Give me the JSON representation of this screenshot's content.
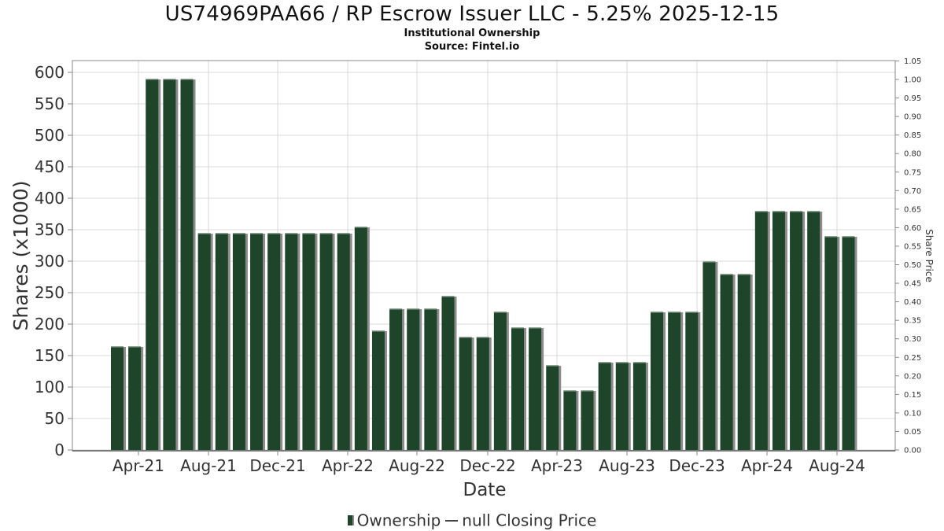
{
  "header": {
    "title": "US74969PAA66 / RP Escrow Issuer LLC - 5.25% 2025-12-15",
    "subtitle1": "Institutional Ownership",
    "subtitle2": "Source: Fintel.io"
  },
  "legend": {
    "ownership": "Ownership",
    "price": "null Closing Price"
  },
  "colors": {
    "bar": "#1e4429",
    "bar_shadow": "#8c8c8c",
    "grid": "#d9d9d9",
    "axis": "#888888"
  },
  "chart_data": {
    "type": "bar",
    "title": "US74969PAA66 / RP Escrow Issuer LLC - 5.25% 2025-12-15",
    "xlabel": "Date",
    "ylabel": "Shares (x1000)",
    "y2label": "Share Price",
    "ylim": [
      0,
      615
    ],
    "y2lim": [
      0,
      1.05
    ],
    "yticks": [
      "0",
      "50",
      "100",
      "150",
      "200",
      "250",
      "300",
      "350",
      "400",
      "450",
      "500",
      "550",
      "600"
    ],
    "y2ticks": [
      "0.00",
      "0.05",
      "0.10",
      "0.15",
      "0.20",
      "0.25",
      "0.30",
      "0.35",
      "0.40",
      "0.45",
      "0.50",
      "0.55",
      "0.60",
      "0.65",
      "0.70",
      "0.75",
      "0.80",
      "0.85",
      "0.90",
      "0.95",
      "1.00",
      "1.05"
    ],
    "xticks": [
      "Apr-21",
      "Aug-21",
      "Dec-21",
      "Apr-22",
      "Aug-22",
      "Dec-22",
      "Apr-23",
      "Aug-23",
      "Dec-23",
      "Apr-24",
      "Aug-24"
    ],
    "grid": true,
    "legend_position": "bottom",
    "series": [
      {
        "name": "Ownership",
        "values": [
          165,
          165,
          590,
          590,
          590,
          345,
          345,
          345,
          345,
          345,
          345,
          345,
          345,
          345,
          355,
          190,
          225,
          225,
          225,
          245,
          180,
          180,
          220,
          195,
          195,
          135,
          95,
          95,
          140,
          140,
          140,
          220,
          220,
          220,
          300,
          280,
          280,
          380,
          380,
          380,
          380,
          340,
          340
        ]
      },
      {
        "name": "null Closing Price",
        "values": []
      }
    ]
  }
}
